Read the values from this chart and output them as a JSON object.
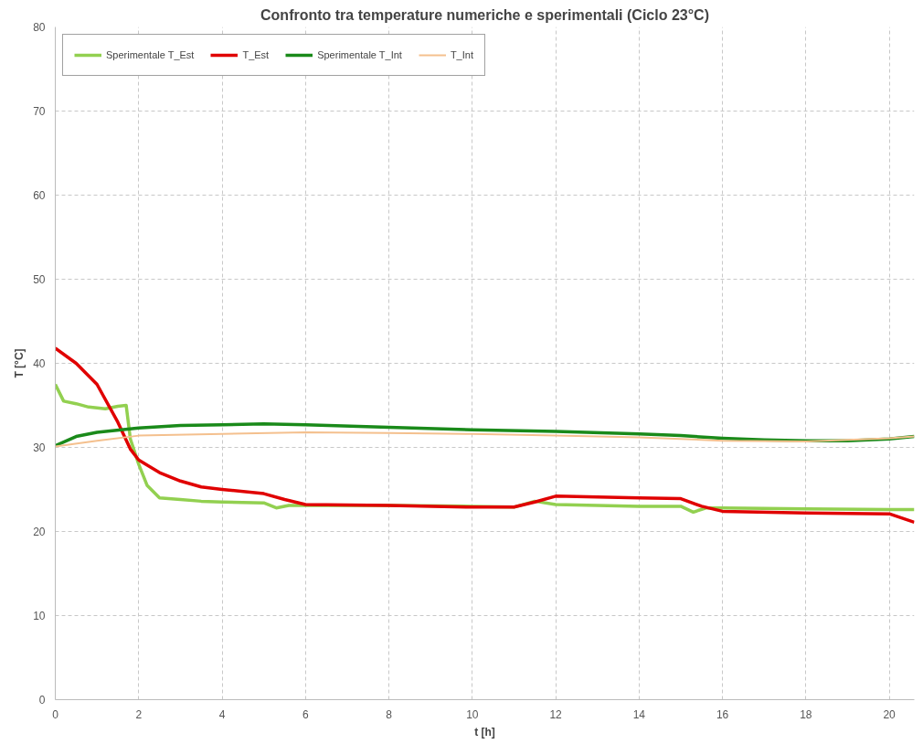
{
  "chart_data": {
    "type": "line",
    "title": "Confronto tra temperature numeriche e sperimentali (Ciclo 23°C)",
    "xlabel": "t [h]",
    "ylabel": "T [°C]",
    "xlim": [
      0,
      20.6
    ],
    "ylim": [
      0,
      80
    ],
    "xticks": [
      0,
      2,
      4,
      6,
      8,
      10,
      12,
      14,
      16,
      18,
      20
    ],
    "yticks": [
      0,
      10,
      20,
      30,
      40,
      50,
      60,
      70,
      80
    ],
    "grid": true,
    "legend": "top left",
    "series": [
      {
        "name": "Sperimentale T_Est",
        "color": "#92d050",
        "x": [
          0,
          0.2,
          0.5,
          0.8,
          1.2,
          1.5,
          1.7,
          1.8,
          2,
          2.2,
          2.5,
          3,
          3.5,
          4,
          5,
          5.3,
          5.6,
          6,
          8,
          10,
          11,
          11.5,
          12,
          13,
          14,
          15,
          15.3,
          15.6,
          16,
          18,
          20,
          20.6
        ],
        "values": [
          37.5,
          35.5,
          35.2,
          34.8,
          34.6,
          34.9,
          35,
          31,
          28,
          25.5,
          24,
          23.8,
          23.6,
          23.5,
          23.4,
          22.8,
          23.1,
          23.1,
          23.1,
          23,
          22.9,
          23.6,
          23.2,
          23.1,
          23,
          23,
          22.3,
          22.8,
          22.8,
          22.7,
          22.6,
          22.6
        ]
      },
      {
        "name": "T_Est",
        "color": "#e00000",
        "x": [
          0,
          0.5,
          1,
          1.5,
          1.8,
          2,
          2.5,
          3,
          3.5,
          4,
          5,
          5.5,
          6,
          8,
          10,
          11,
          11.5,
          12,
          13,
          14,
          15,
          15.5,
          16,
          18,
          20,
          20.6
        ],
        "values": [
          41.8,
          40,
          37.5,
          33,
          29.8,
          28.5,
          27,
          26,
          25.3,
          25,
          24.5,
          23.8,
          23.2,
          23.1,
          22.9,
          22.9,
          23.5,
          24.2,
          24.1,
          24,
          23.9,
          23,
          22.4,
          22.2,
          22.1,
          21.1
        ]
      },
      {
        "name": "Sperimentale T_Int",
        "color": "#1a8a1a",
        "x": [
          0,
          0.5,
          1,
          2,
          3,
          4,
          5,
          6,
          8,
          10,
          12,
          14,
          15,
          16,
          17,
          18,
          19,
          20,
          20.6
        ],
        "values": [
          30.2,
          31.3,
          31.8,
          32.3,
          32.6,
          32.7,
          32.8,
          32.7,
          32.4,
          32.1,
          31.9,
          31.6,
          31.4,
          31.1,
          30.9,
          30.8,
          30.8,
          31,
          31.3
        ]
      },
      {
        "name": "T_Int",
        "color": "#f4c08e",
        "x": [
          0,
          1,
          2,
          4,
          6,
          8,
          10,
          12,
          14,
          16,
          18,
          20,
          20.6
        ],
        "values": [
          30.1,
          30.8,
          31.4,
          31.6,
          31.8,
          31.7,
          31.6,
          31.4,
          31.2,
          30.8,
          30.7,
          31.1,
          31.3
        ]
      }
    ]
  }
}
